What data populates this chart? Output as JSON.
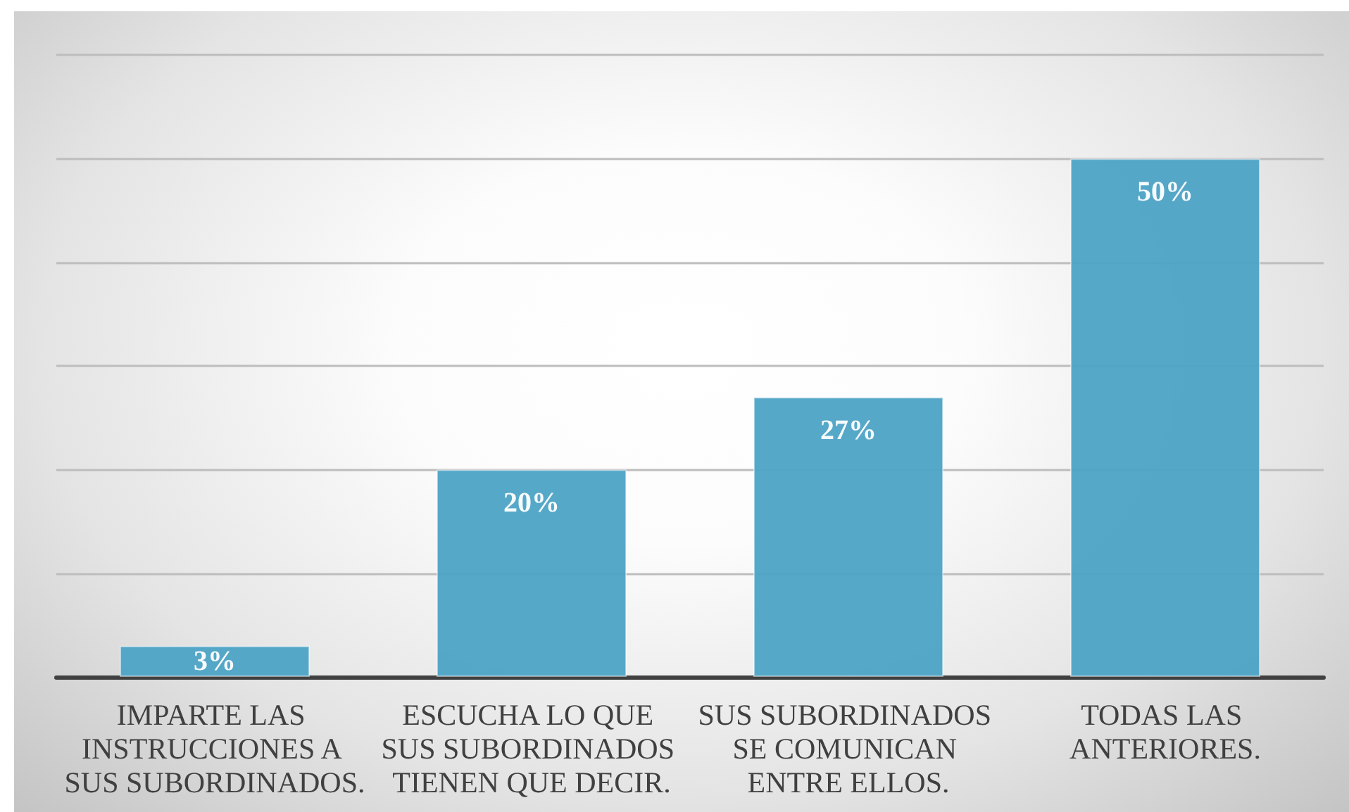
{
  "chart_data": {
    "type": "bar",
    "categories": [
      "IMPARTE LAS INSTRUCCIONES A SUS SUBORDINADOS.",
      "ESCUCHA LO QUE SUS SUBORDINADOS TIENEN QUE DECIR.",
      "SUS SUBORDINADOS SE COMUNICAN ENTRE ELLOS.",
      "TODAS LAS ANTERIORES."
    ],
    "values": [
      3,
      20,
      27,
      50
    ],
    "value_labels": [
      "3%",
      "20%",
      "27%",
      "50%"
    ],
    "color": "#4da3c6",
    "ylim": [
      0,
      60
    ],
    "yticks": [
      {
        "value": 0,
        "label": null
      },
      {
        "value": 10,
        "label": null
      },
      {
        "value": 20,
        "label": null
      },
      {
        "value": 30,
        "label": null
      },
      {
        "value": 40,
        "label": null
      },
      {
        "value": 50,
        "label": null
      }
    ],
    "grid": "y",
    "tick_labels": "x"
  }
}
